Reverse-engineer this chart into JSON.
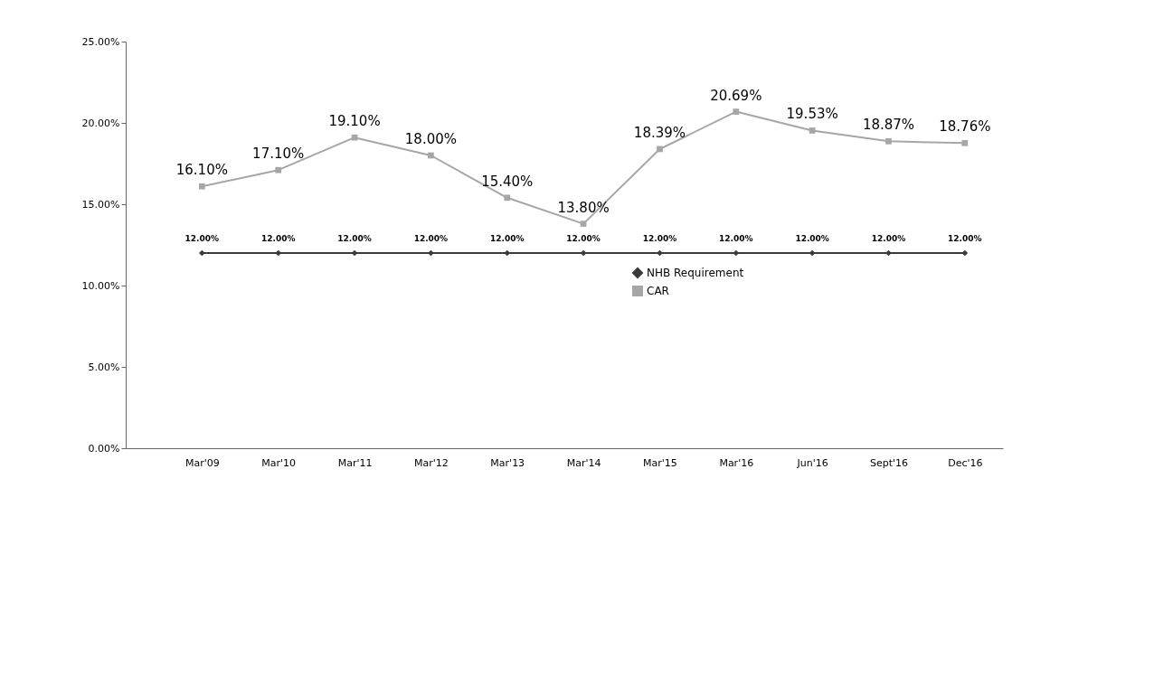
{
  "chart_data": {
    "type": "line",
    "categories": [
      "Mar'09",
      "Mar'10",
      "Mar'11",
      "Mar'12",
      "Mar'13",
      "Mar'14",
      "Mar'15",
      "Mar'16",
      "Jun'16",
      "Sept'16",
      "Dec'16"
    ],
    "series": [
      {
        "name": "NHB Requirement",
        "color": "#3a3a3a",
        "marker": "diamond",
        "values": [
          12,
          12,
          12,
          12,
          12,
          12,
          12,
          12,
          12,
          12,
          12
        ],
        "value_labels": [
          "12.00%",
          "12.00%",
          "12.00%",
          "12.00%",
          "12.00%",
          "12.00%",
          "12.00%",
          "12.00%",
          "12.00%",
          "12.00%",
          "12.00%"
        ]
      },
      {
        "name": "CAR",
        "color": "#a6a6a6",
        "marker": "square",
        "values": [
          16.1,
          17.1,
          19.1,
          18.0,
          15.4,
          13.8,
          18.39,
          20.69,
          19.53,
          18.87,
          18.76
        ],
        "value_labels": [
          "16.10%",
          "17.10%",
          "19.10%",
          "18.00%",
          "15.40%",
          "13.80%",
          "18.39%",
          "20.69%",
          "19.53%",
          "18.87%",
          "18.76%"
        ]
      }
    ],
    "ylim": [
      0,
      25
    ],
    "yticks": [
      {
        "value": 0,
        "label": "0.00%"
      },
      {
        "value": 5,
        "label": "5.00%"
      },
      {
        "value": 10,
        "label": "10.00%"
      },
      {
        "value": 15,
        "label": "15.00%"
      },
      {
        "value": 20,
        "label": "20.00%"
      },
      {
        "value": 25,
        "label": "25.00%"
      }
    ],
    "grid": false,
    "legend": "center",
    "line_style": "solid"
  }
}
